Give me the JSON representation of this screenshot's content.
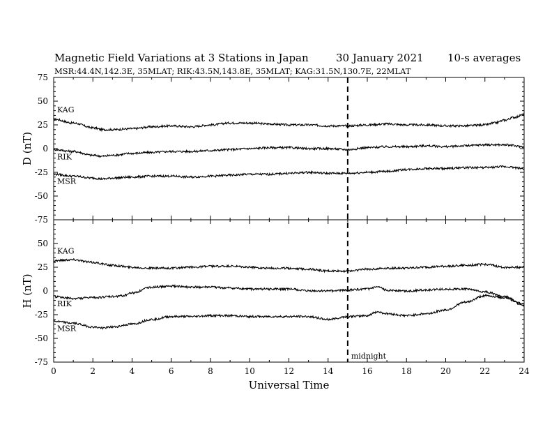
{
  "title": "Magnetic Field Variations at 3 Stations in Japan",
  "date": "30 January  2021",
  "averaging": "10-s averages",
  "stations_line": "MSR:44.4N,142.3E, 35MLAT;  RIK:43.5N,143.8E, 35MLAT;  KAG:31.5N,130.7E, 22MLAT",
  "chart_data": [
    {
      "type": "line",
      "ylabel": "D (nT)",
      "xlabel": "",
      "xlim": [
        0,
        24
      ],
      "ylim": [
        -75,
        75
      ],
      "yticks": [
        "75",
        "50",
        "25",
        "0",
        "-25",
        "-50",
        "-75"
      ],
      "series": [
        {
          "name": "KAG",
          "x": [
            0,
            1,
            2,
            2.5,
            3,
            4,
            5,
            6,
            7,
            8,
            9,
            10,
            11,
            12,
            13,
            14,
            15,
            16,
            17,
            18,
            19,
            20,
            21,
            22,
            22.5,
            23,
            23.5,
            24
          ],
          "values": [
            31,
            27,
            22,
            20,
            20,
            21,
            23,
            24,
            23,
            25,
            27,
            27,
            26,
            25,
            25,
            24,
            24,
            25,
            26,
            25,
            25,
            24,
            24,
            25,
            27,
            30,
            33,
            36
          ]
        },
        {
          "name": "RIK",
          "x": [
            0,
            1,
            2,
            2.5,
            3,
            4,
            5,
            6,
            7,
            8,
            9,
            10,
            11,
            12,
            13,
            14,
            15,
            16,
            17,
            18,
            19,
            20,
            21,
            22,
            23,
            24
          ],
          "values": [
            -1,
            -3,
            -7,
            -8,
            -7,
            -5,
            -4,
            -3,
            -3,
            -2,
            -1,
            0,
            1,
            1,
            0,
            0,
            -1,
            1,
            2,
            2,
            3,
            2,
            3,
            4,
            4,
            2
          ]
        },
        {
          "name": "MSR",
          "x": [
            0,
            1,
            2,
            2.5,
            3,
            4,
            5,
            6,
            7,
            8,
            9,
            10,
            11,
            12,
            13,
            14,
            15,
            16,
            17,
            18,
            19,
            20,
            21,
            22,
            23,
            24
          ],
          "values": [
            -27,
            -29,
            -31,
            -32,
            -31,
            -30,
            -29,
            -29,
            -30,
            -29,
            -28,
            -27,
            -27,
            -26,
            -25,
            -26,
            -26,
            -25,
            -24,
            -22,
            -21,
            -21,
            -20,
            -20,
            -19,
            -21
          ]
        }
      ]
    },
    {
      "type": "line",
      "ylabel": "H (nT)",
      "xlabel": "Universal Time",
      "xlim": [
        0,
        24
      ],
      "ylim": [
        -75,
        75
      ],
      "yticks": [
        "75",
        "50",
        "25",
        "0",
        "-25",
        "-50",
        "-75"
      ],
      "xticks": [
        "0",
        "2",
        "4",
        "6",
        "8",
        "10",
        "12",
        "14",
        "16",
        "18",
        "20",
        "22",
        "24"
      ],
      "series": [
        {
          "name": "KAG",
          "x": [
            0,
            1,
            2,
            3,
            4,
            5,
            6,
            7,
            8,
            9,
            10,
            11,
            12,
            13,
            14,
            15,
            16,
            17,
            18,
            19,
            20,
            21,
            22,
            23,
            24
          ],
          "values": [
            32,
            33,
            30,
            27,
            25,
            24,
            24,
            25,
            26,
            26,
            25,
            24,
            24,
            23,
            21,
            21,
            23,
            24,
            24,
            25,
            26,
            27,
            28,
            25,
            25
          ]
        },
        {
          "name": "RIK",
          "x": [
            0,
            1,
            2,
            3,
            3.5,
            4,
            5,
            6,
            7,
            8,
            9,
            10,
            11,
            12,
            13,
            14,
            15,
            16,
            16.5,
            17,
            18,
            19,
            20,
            21,
            22,
            23,
            24
          ],
          "values": [
            -6,
            -8,
            -7,
            -6,
            -5,
            -2,
            4,
            5,
            4,
            4,
            3,
            2,
            2,
            2,
            0,
            0,
            1,
            2,
            4,
            1,
            0,
            1,
            2,
            2,
            -1,
            -6,
            -14
          ]
        },
        {
          "name": "MSR",
          "x": [
            0,
            1,
            2,
            2.5,
            3,
            4,
            5,
            6,
            7,
            8,
            9,
            10,
            11,
            12,
            13,
            14,
            15,
            16,
            16.5,
            17,
            18,
            19,
            20,
            21,
            22,
            23,
            24
          ],
          "values": [
            -32,
            -34,
            -38,
            -39,
            -38,
            -35,
            -30,
            -27,
            -27,
            -26,
            -26,
            -27,
            -27,
            -27,
            -27,
            -30,
            -27,
            -26,
            -22,
            -24,
            -26,
            -24,
            -20,
            -12,
            -5,
            -7,
            -15
          ]
        }
      ]
    }
  ],
  "midnight_label": "midnight",
  "midnight_ut": 15
}
